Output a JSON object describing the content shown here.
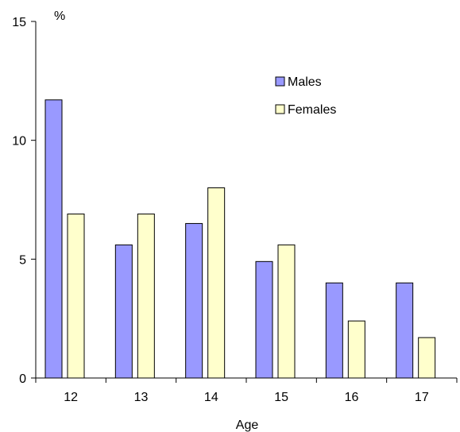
{
  "chart_data": {
    "type": "bar",
    "title": "",
    "xlabel": "Age",
    "ylabel": "%",
    "categories": [
      "12",
      "13",
      "14",
      "15",
      "16",
      "17"
    ],
    "series": [
      {
        "name": "Males",
        "color": "#9999ff",
        "values": [
          11.7,
          5.6,
          6.5,
          4.9,
          4.0,
          4.0
        ]
      },
      {
        "name": "Females",
        "color": "#ffffcc",
        "values": [
          6.9,
          6.9,
          8.0,
          5.6,
          2.4,
          1.7
        ]
      }
    ],
    "ylim": [
      0,
      15
    ],
    "yticks": [
      "0",
      "5",
      "10",
      "15"
    ],
    "grid": false,
    "legend": "top-right",
    "bar_outline_color": "#000000"
  }
}
